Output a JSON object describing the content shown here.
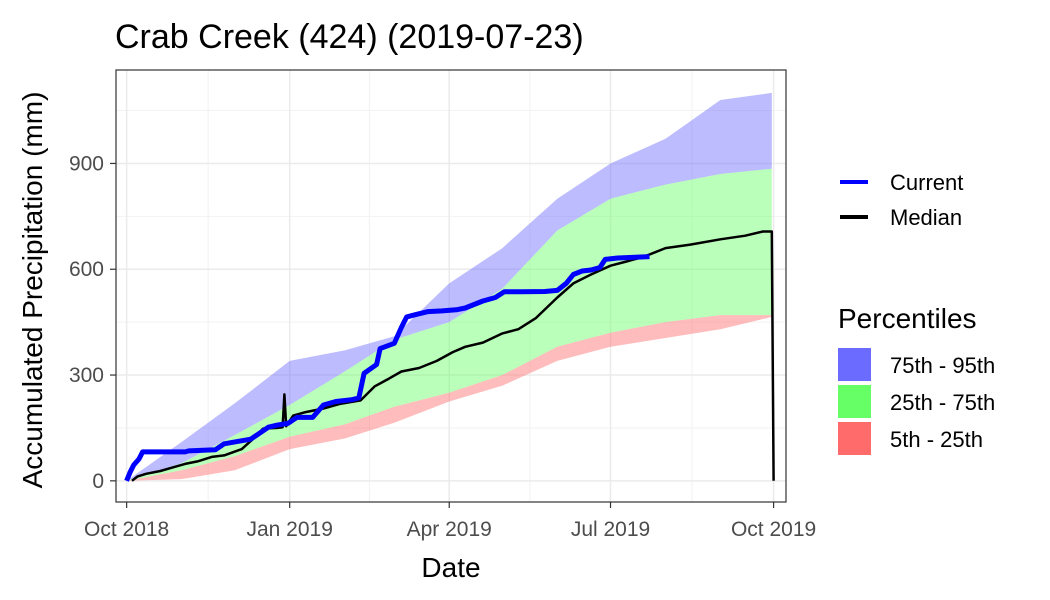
{
  "chart_data": {
    "type": "line",
    "title": "Crab Creek (424) (2019-07-23)",
    "xlabel": "Date",
    "ylabel": "Accumulated Precipitation (mm)",
    "xlim": [
      "2018-09-25",
      "2019-10-08"
    ],
    "ylim": [
      -60,
      1165
    ],
    "x_ticks": [
      "2018-10-01",
      "2019-01-01",
      "2019-04-01",
      "2019-07-01",
      "2019-10-01"
    ],
    "x_tick_labels": [
      "Oct 2018",
      "Jan 2019",
      "Apr 2019",
      "Jul 2019",
      "Oct 2019"
    ],
    "y_ticks": [
      0,
      300,
      600,
      900
    ],
    "y_tick_labels": [
      "0",
      "300",
      "600",
      "900"
    ],
    "grid": true,
    "legend_position": "right",
    "series": [
      {
        "name": "Current",
        "color": "#0000ff",
        "points": [
          [
            "2018-10-01",
            0
          ],
          [
            "2018-10-03",
            25
          ],
          [
            "2018-10-05",
            45
          ],
          [
            "2018-10-08",
            62
          ],
          [
            "2018-10-10",
            82
          ],
          [
            "2018-11-03",
            82
          ],
          [
            "2018-11-05",
            85
          ],
          [
            "2018-11-20",
            88
          ],
          [
            "2018-11-25",
            105
          ],
          [
            "2018-12-10",
            118
          ],
          [
            "2018-12-20",
            152
          ],
          [
            "2018-12-25",
            158
          ],
          [
            "2018-12-31",
            163
          ],
          [
            "2019-01-05",
            180
          ],
          [
            "2019-01-14",
            180
          ],
          [
            "2019-01-20",
            215
          ],
          [
            "2019-01-27",
            225
          ],
          [
            "2019-02-05",
            230
          ],
          [
            "2019-02-09",
            235
          ],
          [
            "2019-02-12",
            305
          ],
          [
            "2019-02-19",
            330
          ],
          [
            "2019-02-21",
            375
          ],
          [
            "2019-03-01",
            390
          ],
          [
            "2019-03-05",
            435
          ],
          [
            "2019-03-08",
            465
          ],
          [
            "2019-03-12",
            470
          ],
          [
            "2019-03-20",
            480
          ],
          [
            "2019-03-28",
            482
          ],
          [
            "2019-04-05",
            485
          ],
          [
            "2019-04-10",
            490
          ],
          [
            "2019-04-20",
            510
          ],
          [
            "2019-04-27",
            520
          ],
          [
            "2019-05-02",
            536
          ],
          [
            "2019-05-12",
            536
          ],
          [
            "2019-05-25",
            537
          ],
          [
            "2019-06-01",
            540
          ],
          [
            "2019-06-06",
            560
          ],
          [
            "2019-06-10",
            585
          ],
          [
            "2019-06-15",
            595
          ],
          [
            "2019-06-20",
            598
          ],
          [
            "2019-06-25",
            605
          ],
          [
            "2019-06-28",
            628
          ],
          [
            "2019-07-05",
            632
          ],
          [
            "2019-07-15",
            634
          ],
          [
            "2019-07-23",
            636
          ]
        ]
      },
      {
        "name": "Median",
        "color": "#000000",
        "points": [
          [
            "2018-10-04",
            0
          ],
          [
            "2018-10-07",
            12
          ],
          [
            "2018-10-12",
            20
          ],
          [
            "2018-10-20",
            28
          ],
          [
            "2018-10-27",
            38
          ],
          [
            "2018-11-03",
            48
          ],
          [
            "2018-11-10",
            55
          ],
          [
            "2018-11-18",
            68
          ],
          [
            "2018-11-25",
            72
          ],
          [
            "2018-12-05",
            90
          ],
          [
            "2018-12-12",
            122
          ],
          [
            "2018-12-17",
            148
          ],
          [
            "2018-12-25",
            150
          ],
          [
            "2018-12-28",
            152
          ],
          [
            "2018-12-29",
            245
          ],
          [
            "2018-12-30",
            155
          ],
          [
            "2019-01-03",
            185
          ],
          [
            "2019-01-10",
            195
          ],
          [
            "2019-01-20",
            205
          ],
          [
            "2019-01-29",
            218
          ],
          [
            "2019-02-10",
            228
          ],
          [
            "2019-02-18",
            268
          ],
          [
            "2019-02-26",
            290
          ],
          [
            "2019-03-05",
            310
          ],
          [
            "2019-03-15",
            320
          ],
          [
            "2019-03-25",
            340
          ],
          [
            "2019-04-03",
            365
          ],
          [
            "2019-04-10",
            380
          ],
          [
            "2019-04-20",
            392
          ],
          [
            "2019-05-01",
            418
          ],
          [
            "2019-05-10",
            430
          ],
          [
            "2019-05-20",
            462
          ],
          [
            "2019-06-01",
            520
          ],
          [
            "2019-06-10",
            560
          ],
          [
            "2019-06-20",
            585
          ],
          [
            "2019-07-01",
            610
          ],
          [
            "2019-07-10",
            622
          ],
          [
            "2019-07-20",
            636
          ],
          [
            "2019-08-01",
            660
          ],
          [
            "2019-08-15",
            670
          ],
          [
            "2019-09-01",
            685
          ],
          [
            "2019-09-15",
            695
          ],
          [
            "2019-09-25",
            707
          ],
          [
            "2019-09-30",
            707
          ],
          [
            "2019-10-01",
            0
          ]
        ]
      }
    ],
    "percentile_bands": [
      {
        "name": "75th - 95th",
        "color": "#6b6bff",
        "x": [
          "2018-10-01",
          "2018-11-01",
          "2018-12-01",
          "2019-01-01",
          "2019-02-01",
          "2019-03-01",
          "2019-04-01",
          "2019-05-01",
          "2019-06-01",
          "2019-07-01",
          "2019-08-01",
          "2019-09-01",
          "2019-09-30"
        ],
        "lower": [
          0,
          50,
          130,
          215,
          310,
          400,
          450,
          545,
          710,
          800,
          840,
          870,
          885
        ],
        "upper": [
          0,
          110,
          220,
          340,
          370,
          410,
          560,
          660,
          800,
          900,
          970,
          1080,
          1100
        ]
      },
      {
        "name": "25th - 75th",
        "color": "#66ff66",
        "x": [
          "2018-10-01",
          "2018-11-01",
          "2018-12-01",
          "2019-01-01",
          "2019-02-01",
          "2019-03-01",
          "2019-04-01",
          "2019-05-01",
          "2019-06-01",
          "2019-07-01",
          "2019-08-01",
          "2019-09-01",
          "2019-09-30"
        ],
        "lower": [
          0,
          30,
          70,
          125,
          160,
          210,
          250,
          300,
          380,
          420,
          450,
          470,
          470
        ],
        "upper": [
          0,
          50,
          130,
          215,
          310,
          400,
          450,
          545,
          710,
          800,
          840,
          870,
          885
        ]
      },
      {
        "name": "5th - 25th",
        "color": "#ff6b6b",
        "x": [
          "2018-10-01",
          "2018-11-01",
          "2018-12-01",
          "2019-01-01",
          "2019-02-01",
          "2019-03-01",
          "2019-04-01",
          "2019-05-01",
          "2019-06-01",
          "2019-07-01",
          "2019-08-01",
          "2019-09-01",
          "2019-09-30"
        ],
        "lower": [
          0,
          5,
          30,
          90,
          120,
          165,
          225,
          270,
          340,
          380,
          405,
          430,
          465
        ],
        "upper": [
          0,
          30,
          70,
          125,
          160,
          210,
          250,
          300,
          380,
          420,
          450,
          470,
          470
        ]
      }
    ],
    "legend": {
      "lines": [
        {
          "label": "Current",
          "color": "#0000ff"
        },
        {
          "label": "Median",
          "color": "#000000"
        }
      ],
      "percentiles_title": "Percentiles",
      "bands": [
        {
          "label": "75th - 95th",
          "color": "#6b6bff"
        },
        {
          "label": "25th - 75th",
          "color": "#66ff66"
        },
        {
          "label": "5th - 25th",
          "color": "#ff6b6b"
        }
      ]
    }
  }
}
